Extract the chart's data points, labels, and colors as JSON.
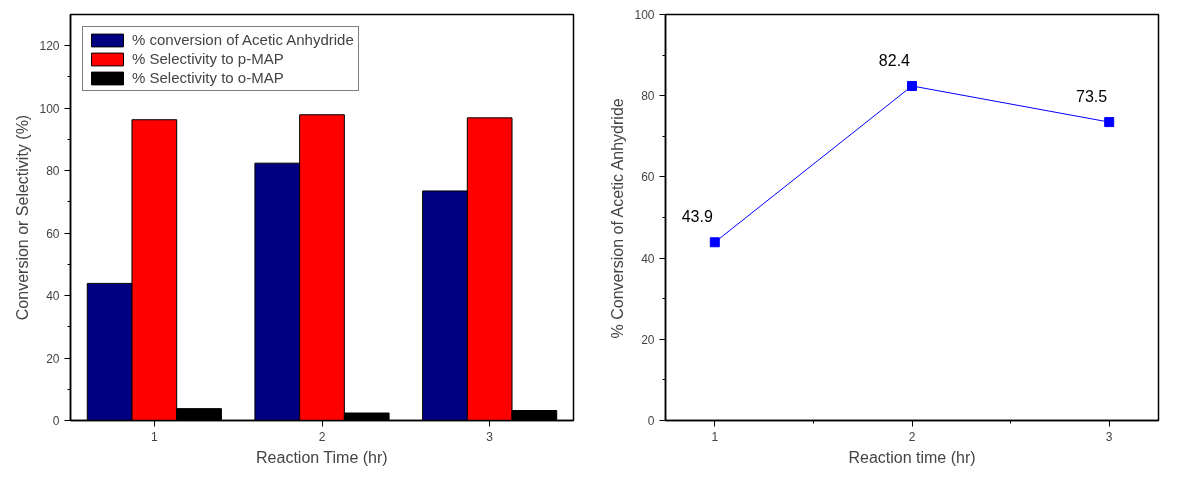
{
  "chart_data": [
    {
      "type": "bar",
      "xlabel": "Reaction Time (hr)",
      "ylabel": "Conversion or Selectivity (%)",
      "categories": [
        "1",
        "2",
        "3"
      ],
      "series": [
        {
          "name": "% conversion of Acetic Anhydride",
          "color": "#000080",
          "values": [
            43.9,
            82.4,
            73.5
          ]
        },
        {
          "name": "% Selectivity to p-MAP",
          "color": "#ff0000",
          "values": [
            96.3,
            97.9,
            96.9
          ]
        },
        {
          "name": "% Selectivity to o-MAP",
          "color": "#000000",
          "values": [
            3.8,
            2.4,
            3.2
          ]
        }
      ],
      "ylim": [
        0,
        130
      ],
      "yticks": [
        0,
        {
          "value": 10,
          "label": null
        },
        20,
        {
          "value": 30,
          "label": null
        },
        40,
        {
          "value": 50,
          "label": null
        },
        60,
        {
          "value": 70,
          "label": null
        },
        80,
        {
          "value": 90,
          "label": null
        },
        100,
        {
          "value": 110,
          "label": null
        },
        120
      ],
      "legend": "top left",
      "grid": false
    },
    {
      "type": "line",
      "xlabel": "Reaction time (hr)",
      "ylabel": "% Conversion of Acetic Anhydride",
      "x": [
        1,
        2,
        3
      ],
      "series": [
        {
          "color": "#0000ff",
          "values": [
            43.9,
            82.4,
            73.5
          ]
        }
      ],
      "xlim": [
        0.75,
        3.25
      ],
      "xticks": [
        1,
        {
          "value": 1.5,
          "label": null
        },
        2,
        {
          "value": 2.5,
          "label": null
        },
        3
      ],
      "ylim": [
        0,
        100
      ],
      "yticks": [
        0,
        {
          "value": 10,
          "label": null
        },
        20,
        {
          "value": 30,
          "label": null
        },
        40,
        {
          "value": 50,
          "label": null
        },
        60,
        {
          "value": 70,
          "label": null
        },
        80,
        {
          "value": 90,
          "label": null
        },
        100
      ],
      "marker": "square",
      "data_labels": true,
      "grid": false
    }
  ]
}
